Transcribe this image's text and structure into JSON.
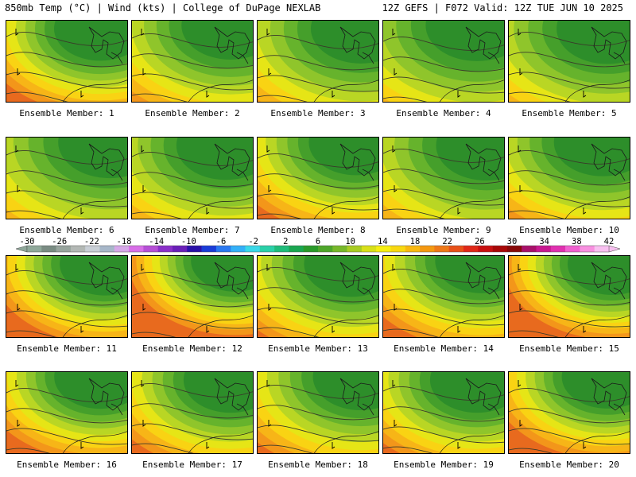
{
  "header": {
    "left": "850mb Temp (°C) | Wind (kts) | College of DuPage NEXLAB",
    "right": "12Z GEFS | F072 Valid: 12Z TUE JUN 10 2025"
  },
  "panels": [
    {
      "caption": "Ensemble Member: 1"
    },
    {
      "caption": "Ensemble Member: 2"
    },
    {
      "caption": "Ensemble Member: 3"
    },
    {
      "caption": "Ensemble Member: 4"
    },
    {
      "caption": "Ensemble Member: 5"
    },
    {
      "caption": "Ensemble Member: 6"
    },
    {
      "caption": "Ensemble Member: 7"
    },
    {
      "caption": "Ensemble Member: 8"
    },
    {
      "caption": "Ensemble Member: 9"
    },
    {
      "caption": "Ensemble Member: 10"
    },
    {
      "caption": "Ensemble Member: 11"
    },
    {
      "caption": "Ensemble Member: 12"
    },
    {
      "caption": "Ensemble Member: 13"
    },
    {
      "caption": "Ensemble Member: 14"
    },
    {
      "caption": "Ensemble Member: 15"
    },
    {
      "caption": "Ensemble Member: 16"
    },
    {
      "caption": "Ensemble Member: 17"
    },
    {
      "caption": "Ensemble Member: 18"
    },
    {
      "caption": "Ensemble Member: 19"
    },
    {
      "caption": "Ensemble Member: 20"
    }
  ],
  "colorbar": {
    "labels": [
      "-30",
      "-26",
      "-22",
      "-18",
      "-14",
      "-10",
      "-6",
      "-2",
      "2",
      "6",
      "10",
      "14",
      "18",
      "22",
      "26",
      "30",
      "34",
      "38",
      "42"
    ],
    "colors": [
      "#8fa89a",
      "#7a8c83",
      "#98a59e",
      "#b3b8b5",
      "#c9cfd6",
      "#a7b7c9",
      "#d6a8e8",
      "#d86ee8",
      "#b64fd6",
      "#8a2fc9",
      "#6a1fb8",
      "#2a10a8",
      "#1a3cd8",
      "#2a78f0",
      "#33b0f8",
      "#3ad8e8",
      "#2ad0a8",
      "#1fbc7a",
      "#1aa650",
      "#2a9a2a",
      "#4ea62a",
      "#77b82a",
      "#a8cc22",
      "#d8e018",
      "#f6ee10",
      "#f8d810",
      "#f8b810",
      "#f49810",
      "#ee7818",
      "#e85018",
      "#e02818",
      "#c81010",
      "#a80808",
      "#880808",
      "#a8106a",
      "#c81890",
      "#e030b0",
      "#f060d0",
      "#f890e0",
      "#f8c0f0"
    ]
  }
}
